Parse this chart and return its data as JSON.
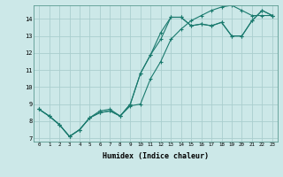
{
  "xlabel": "Humidex (Indice chaleur)",
  "ylabel": "",
  "bg_color": "#cce8e8",
  "line_color": "#1a7a6e",
  "grid_color": "#aacece",
  "xlim": [
    -0.5,
    23.5
  ],
  "ylim": [
    6.8,
    14.8
  ],
  "xticks": [
    0,
    1,
    2,
    3,
    4,
    5,
    6,
    7,
    8,
    9,
    10,
    11,
    12,
    13,
    14,
    15,
    16,
    17,
    18,
    19,
    20,
    21,
    22,
    23
  ],
  "yticks": [
    7,
    8,
    9,
    10,
    11,
    12,
    13,
    14
  ],
  "line1": {
    "x": [
      0,
      1,
      2,
      3,
      4,
      5,
      6,
      7,
      8,
      9,
      10,
      11,
      12,
      13,
      14,
      15,
      16,
      17,
      18,
      19,
      20,
      21,
      22,
      23
    ],
    "y": [
      8.7,
      8.3,
      7.8,
      7.1,
      7.5,
      8.2,
      8.5,
      8.6,
      8.3,
      9.0,
      10.8,
      11.9,
      12.8,
      14.1,
      14.1,
      13.6,
      13.7,
      13.6,
      13.8,
      13.0,
      13.0,
      13.9,
      14.5,
      14.2
    ]
  },
  "line2": {
    "x": [
      0,
      1,
      2,
      3,
      4,
      5,
      6,
      7,
      8,
      9,
      10,
      11,
      12,
      13,
      14,
      15,
      16,
      17,
      18,
      19,
      20,
      21,
      22,
      23
    ],
    "y": [
      8.7,
      8.3,
      7.8,
      7.1,
      7.5,
      8.2,
      8.6,
      8.7,
      8.3,
      8.9,
      9.0,
      10.5,
      11.5,
      12.8,
      13.4,
      13.9,
      14.2,
      14.5,
      14.7,
      14.8,
      14.5,
      14.2,
      14.2,
      14.2
    ]
  },
  "line3": {
    "x": [
      0,
      1,
      2,
      3,
      4,
      5,
      6,
      7,
      8,
      9,
      10,
      11,
      12,
      13,
      14,
      15,
      16,
      17,
      18,
      19,
      20,
      21,
      22,
      23
    ],
    "y": [
      8.7,
      8.3,
      7.8,
      7.1,
      7.5,
      8.2,
      8.5,
      8.6,
      8.3,
      9.0,
      10.8,
      11.9,
      13.2,
      14.1,
      14.1,
      13.6,
      13.7,
      13.6,
      13.8,
      13.0,
      13.0,
      13.9,
      14.5,
      14.2
    ]
  }
}
